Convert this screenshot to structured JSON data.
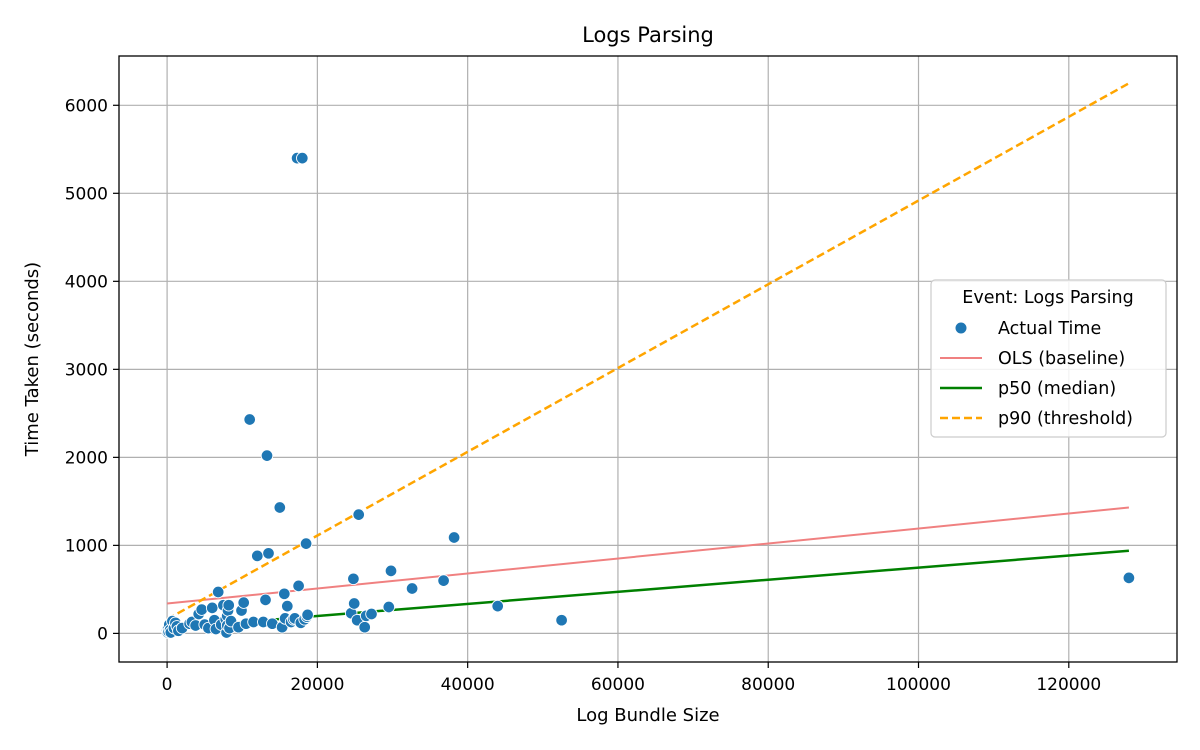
{
  "chart_data": {
    "type": "scatter",
    "title": "Logs Parsing",
    "xlabel": "Log Bundle Size",
    "ylabel": "Time Taken (seconds)",
    "xlim": [
      -6400,
      134400
    ],
    "ylim": [
      -325,
      6560
    ],
    "x_ticks": [
      0,
      20000,
      40000,
      60000,
      80000,
      100000,
      120000
    ],
    "y_ticks": [
      0,
      1000,
      2000,
      3000,
      4000,
      5000,
      6000
    ],
    "grid": true,
    "legend": {
      "title": "Event: Logs Parsing",
      "placement": "center-right",
      "entries": [
        "Actual Time",
        "OLS (baseline)",
        "p50 (median)",
        "p90 (threshold)"
      ]
    },
    "colors": {
      "scatter": "#1f77b4",
      "ols": "#f08080",
      "p50": "#008000",
      "p90": "#ffa500",
      "grid": "#b0b0b0"
    },
    "scatter": {
      "name": "Actual Time",
      "x": [
        0,
        80,
        150,
        200,
        300,
        400,
        500,
        700,
        900,
        1100,
        1300,
        1500,
        2000,
        3000,
        3300,
        3800,
        4200,
        4600,
        5000,
        5500,
        6000,
        6300,
        6500,
        6800,
        7200,
        7500,
        7800,
        7900,
        8000,
        8000,
        8100,
        8200,
        8300,
        8500,
        9500,
        9900,
        10200,
        10500,
        11000,
        11500,
        12000,
        12800,
        13100,
        13300,
        13500,
        14000,
        15000,
        15300,
        15600,
        15700,
        16000,
        16500,
        16800,
        17000,
        17300,
        17500,
        17800,
        18000,
        18300,
        18500,
        18600,
        18700,
        24500,
        24800,
        24900,
        25300,
        25500,
        26300,
        26500,
        27200,
        29500,
        29800,
        32600,
        36800,
        38200,
        44000,
        52500,
        128000
      ],
      "y": [
        30,
        10,
        60,
        20,
        100,
        40,
        10,
        140,
        60,
        120,
        80,
        30,
        60,
        110,
        130,
        90,
        220,
        270,
        100,
        60,
        290,
        150,
        50,
        470,
        100,
        320,
        160,
        10,
        200,
        90,
        260,
        320,
        60,
        140,
        70,
        260,
        350,
        110,
        2430,
        130,
        880,
        130,
        380,
        2020,
        910,
        110,
        1430,
        70,
        450,
        170,
        310,
        130,
        160,
        170,
        5400,
        540,
        120,
        5400,
        160,
        1020,
        190,
        210,
        230,
        620,
        340,
        150,
        1350,
        70,
        200,
        220,
        300,
        710,
        510,
        600,
        1090,
        310,
        150,
        630
      ]
    },
    "lines": [
      {
        "name": "OLS (baseline)",
        "x": [
          0,
          128000
        ],
        "y": [
          340,
          1430
        ]
      },
      {
        "name": "p50 (median)",
        "x": [
          0,
          128000
        ],
        "y": [
          60,
          940
        ]
      },
      {
        "name": "p90 (threshold)",
        "x": [
          0,
          128000
        ],
        "y": [
          160,
          6250
        ]
      }
    ]
  }
}
